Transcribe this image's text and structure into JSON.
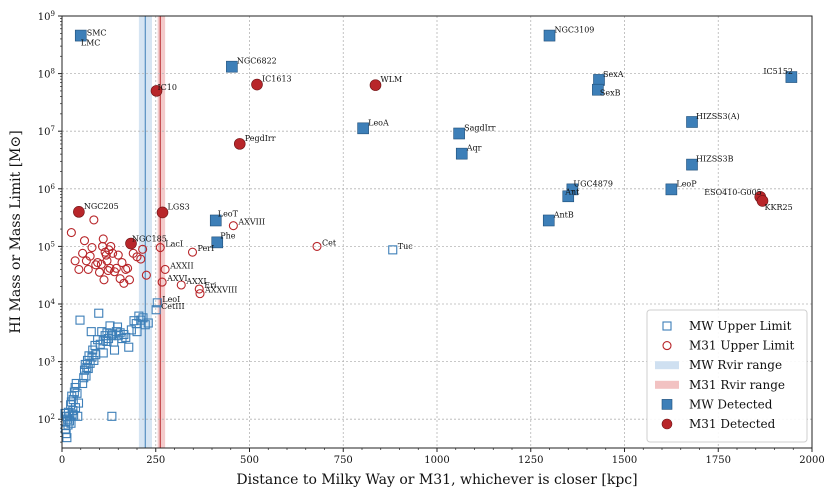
{
  "chart_data": {
    "type": "scatter",
    "xlabel": "Distance to Milky Way or M31, whichever is closer [kpc]",
    "ylabel": "HI Mass or Mass Limit [M⊙]",
    "xlim": [
      0,
      2000
    ],
    "ylim_log10": [
      1.5,
      9
    ],
    "x_ticks": [
      0,
      250,
      500,
      750,
      1000,
      1250,
      1500,
      1750,
      2000
    ],
    "y_ticks": [
      {
        "exp": 2,
        "label": "10",
        "sup": "2"
      },
      {
        "exp": 3,
        "label": "10",
        "sup": "3"
      },
      {
        "exp": 4,
        "label": "10",
        "sup": "4"
      },
      {
        "exp": 5,
        "label": "10",
        "sup": "5"
      },
      {
        "exp": 6,
        "label": "10",
        "sup": "6"
      },
      {
        "exp": 7,
        "label": "10",
        "sup": "7"
      },
      {
        "exp": 8,
        "label": "10",
        "sup": "8"
      },
      {
        "exp": 9,
        "label": "10",
        "sup": "9"
      }
    ],
    "grid": true,
    "legend_position": "bottom-right",
    "colors": {
      "mw": "#3d7fb8",
      "m31": "#b8262a",
      "mw_band": "#cfe0f1",
      "m31_band": "#f2c2c2"
    },
    "legend": [
      {
        "key": "mw_upper",
        "label": "MW Upper Limit"
      },
      {
        "key": "m31_upper",
        "label": "M31 Upper Limit"
      },
      {
        "key": "mw_rvir",
        "label": "MW Rvir range"
      },
      {
        "key": "m31_rvir",
        "label": "M31 Rvir range"
      },
      {
        "key": "mw_det",
        "label": "MW Detected"
      },
      {
        "key": "m31_det",
        "label": "M31 Detected"
      }
    ],
    "rvir_ranges": {
      "mw": {
        "x": [
          205,
          240
        ],
        "line": 222
      },
      "m31": {
        "x": [
          255,
          275
        ],
        "line": 262
      }
    },
    "mw_detected": [
      {
        "name": "SMC",
        "x": 50,
        "log_m": 8.66
      },
      {
        "name": "LMC",
        "x": 50,
        "log_m": 8.66
      },
      {
        "name": "NGC6822",
        "x": 453,
        "log_m": 8.12
      },
      {
        "name": "NGC3109",
        "x": 1300,
        "log_m": 8.66
      },
      {
        "name": "SexA",
        "x": 1432,
        "log_m": 7.89
      },
      {
        "name": "SexB",
        "x": 1429,
        "log_m": 7.72
      },
      {
        "name": "IC5152",
        "x": 1945,
        "log_m": 7.94
      },
      {
        "name": "LeoA",
        "x": 803,
        "log_m": 7.05
      },
      {
        "name": "SagdIrr",
        "x": 1059,
        "log_m": 6.96
      },
      {
        "name": "Aqr",
        "x": 1066,
        "log_m": 6.61
      },
      {
        "name": "HIZSS3(A)",
        "x": 1680,
        "log_m": 7.16
      },
      {
        "name": "HIZSS3B",
        "x": 1680,
        "log_m": 6.42
      },
      {
        "name": "UGC4879",
        "x": 1361,
        "log_m": 5.99
      },
      {
        "name": "Ant",
        "x": 1350,
        "log_m": 5.87
      },
      {
        "name": "LeoP",
        "x": 1625,
        "log_m": 5.99
      },
      {
        "name": "AntB",
        "x": 1298,
        "log_m": 5.45
      },
      {
        "name": "LeoT",
        "x": 410,
        "log_m": 5.45
      },
      {
        "name": "Phe",
        "x": 414,
        "log_m": 5.07
      }
    ],
    "m31_detected": [
      {
        "name": "IC10",
        "x": 252,
        "log_m": 7.7
      },
      {
        "name": "IC1613",
        "x": 520,
        "log_m": 7.81
      },
      {
        "name": "WLM",
        "x": 836,
        "log_m": 7.8
      },
      {
        "name": "PegdIrr",
        "x": 474,
        "log_m": 6.78
      },
      {
        "name": "ESO410-G005",
        "x": 1862,
        "log_m": 5.86
      },
      {
        "name": "KKR25",
        "x": 1868,
        "log_m": 5.79
      },
      {
        "name": "NGC205",
        "x": 45,
        "log_m": 5.6
      },
      {
        "name": "LGS3",
        "x": 268,
        "log_m": 5.59
      },
      {
        "name": "NGC185",
        "x": 184,
        "log_m": 5.05
      }
    ],
    "mw_upper_named": [
      {
        "name": "Tuc",
        "x": 882,
        "log_m": 4.94
      },
      {
        "name": "LeoI",
        "x": 254,
        "log_m": 4.02
      },
      {
        "name": "CetIII",
        "x": 251,
        "log_m": 3.9
      }
    ],
    "m31_upper_named": [
      {
        "name": "AXVIII",
        "x": 457,
        "log_m": 5.36
      },
      {
        "name": "Cet",
        "x": 680,
        "log_m": 5.0
      },
      {
        "name": "LacI",
        "x": 262,
        "log_m": 4.98
      },
      {
        "name": "PerI",
        "x": 348,
        "log_m": 4.9
      },
      {
        "name": "AXXII",
        "x": 275,
        "log_m": 4.6
      },
      {
        "name": "AXVI",
        "x": 267,
        "log_m": 4.38
      },
      {
        "name": "AXXI",
        "x": 318,
        "log_m": 4.33
      },
      {
        "name": "Eri",
        "x": 366,
        "log_m": 4.26
      },
      {
        "name": "AXXVIII",
        "x": 368,
        "log_m": 4.18
      }
    ],
    "mw_upper_points": [
      [
        8,
        2.1
      ],
      [
        9,
        1.83
      ],
      [
        10,
        1.95
      ],
      [
        11,
        1.75
      ],
      [
        12,
        2.05
      ],
      [
        13,
        1.68
      ],
      [
        15,
        2.0
      ],
      [
        16,
        1.9
      ],
      [
        17,
        2.12
      ],
      [
        20,
        1.97
      ],
      [
        21,
        2.05
      ],
      [
        23,
        2.25
      ],
      [
        24,
        1.93
      ],
      [
        25,
        2.3
      ],
      [
        26,
        2.4
      ],
      [
        27,
        2.09
      ],
      [
        29,
        2.15
      ],
      [
        30,
        2.34
      ],
      [
        31,
        2.07
      ],
      [
        33,
        2.47
      ],
      [
        35,
        2.55
      ],
      [
        36,
        2.2
      ],
      [
        38,
        2.62
      ],
      [
        40,
        2.45
      ],
      [
        42,
        2.05
      ],
      [
        44,
        2.28
      ],
      [
        48,
        3.72
      ],
      [
        55,
        2.62
      ],
      [
        58,
        2.72
      ],
      [
        60,
        2.85
      ],
      [
        62,
        2.95
      ],
      [
        64,
        2.75
      ],
      [
        66,
        2.9
      ],
      [
        68,
        3.02
      ],
      [
        70,
        2.88
      ],
      [
        72,
        3.1
      ],
      [
        75,
        2.97
      ],
      [
        78,
        3.52
      ],
      [
        80,
        3.08
      ],
      [
        82,
        3.2
      ],
      [
        85,
        3.02
      ],
      [
        88,
        3.28
      ],
      [
        90,
        3.12
      ],
      [
        95,
        3.38
      ],
      [
        98,
        3.84
      ],
      [
        102,
        3.3
      ],
      [
        106,
        3.52
      ],
      [
        110,
        3.36
      ],
      [
        115,
        3.45
      ],
      [
        120,
        3.5
      ],
      [
        124,
        3.4
      ],
      [
        128,
        3.62
      ],
      [
        132,
        3.45
      ],
      [
        135,
        3.48
      ],
      [
        138,
        3.34
      ],
      [
        140,
        3.2
      ],
      [
        145,
        3.52
      ],
      [
        150,
        3.45
      ],
      [
        155,
        3.5
      ],
      [
        160,
        3.4
      ],
      [
        165,
        3.47
      ],
      [
        170,
        3.42
      ],
      [
        178,
        3.25
      ],
      [
        185,
        3.55
      ],
      [
        192,
        3.71
      ],
      [
        198,
        3.66
      ],
      [
        205,
        3.79
      ],
      [
        210,
        3.72
      ],
      [
        216,
        3.76
      ],
      [
        222,
        3.64
      ],
      [
        230,
        3.67
      ],
      [
        133,
        2.05
      ],
      [
        110,
        3.15
      ],
      [
        148,
        3.6
      ],
      [
        120,
        3.35
      ],
      [
        200,
        3.52
      ]
    ],
    "m31_upper_points": [
      [
        25,
        5.24
      ],
      [
        35,
        4.75
      ],
      [
        45,
        4.6
      ],
      [
        55,
        4.88
      ],
      [
        60,
        5.1
      ],
      [
        65,
        4.75
      ],
      [
        70,
        4.6
      ],
      [
        75,
        4.83
      ],
      [
        80,
        4.98
      ],
      [
        85,
        5.46
      ],
      [
        90,
        4.68
      ],
      [
        95,
        4.72
      ],
      [
        100,
        4.55
      ],
      [
        105,
        4.69
      ],
      [
        108,
        5.0
      ],
      [
        110,
        5.13
      ],
      [
        112,
        4.42
      ],
      [
        115,
        4.9
      ],
      [
        118,
        4.85
      ],
      [
        120,
        4.75
      ],
      [
        123,
        4.58
      ],
      [
        125,
        4.94
      ],
      [
        128,
        4.62
      ],
      [
        130,
        5.0
      ],
      [
        135,
        4.88
      ],
      [
        140,
        4.56
      ],
      [
        145,
        4.62
      ],
      [
        150,
        4.85
      ],
      [
        155,
        4.44
      ],
      [
        160,
        4.72
      ],
      [
        165,
        4.36
      ],
      [
        170,
        4.6
      ],
      [
        175,
        4.62
      ],
      [
        180,
        4.42
      ],
      [
        190,
        4.88
      ],
      [
        200,
        4.82
      ],
      [
        210,
        4.78
      ],
      [
        215,
        4.95
      ],
      [
        225,
        4.5
      ]
    ]
  }
}
